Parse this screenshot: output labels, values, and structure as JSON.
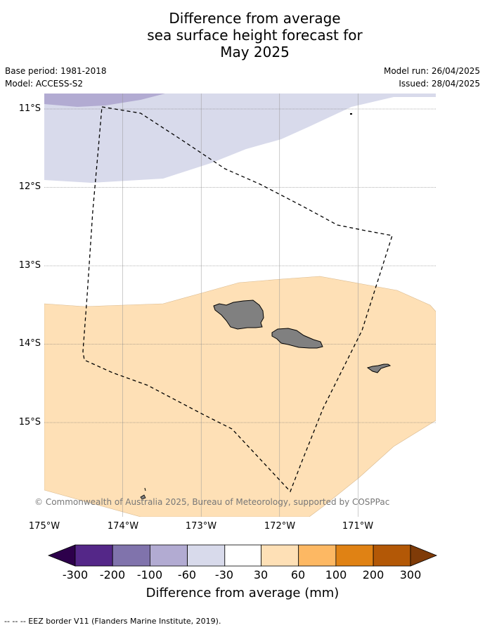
{
  "title_lines": [
    "Difference from average",
    "sea surface height forecast for",
    "May 2025"
  ],
  "meta": {
    "base_period": "Base period: 1981-2018",
    "model": "Model: ACCESS-S2",
    "model_run": "Model run: 26/04/2025",
    "issued": "Issued: 28/04/2025"
  },
  "copyright": "© Commonwealth of Australia 2025, Bureau of Meteorology, supported by COSPPac",
  "lat_labels": [
    "11°S",
    "12°S",
    "13°S",
    "14°S",
    "15°S"
  ],
  "lon_labels": [
    "175°W",
    "174°W",
    "173°W",
    "172°W",
    "171°W"
  ],
  "colorbar": {
    "colors": [
      "#2d004b",
      "#542788",
      "#8073ac",
      "#b2abd2",
      "#d8daeb",
      "#ffffff",
      "#fee0b6",
      "#fdb863",
      "#e08214",
      "#b35806",
      "#7f3b08"
    ],
    "ticks": [
      "-300",
      "-200",
      "-100",
      "-60",
      "-30",
      "30",
      "60",
      "100",
      "200",
      "300"
    ],
    "label": "Difference from average (mm)"
  },
  "footer": "--  --  -- EEZ border V11 (Flanders Marine Institute, 2019)."
}
